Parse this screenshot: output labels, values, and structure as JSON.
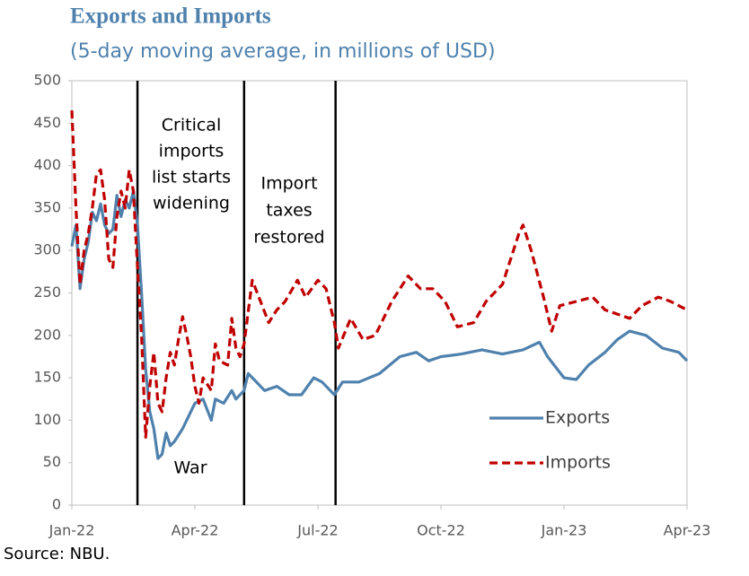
{
  "chart_data": {
    "type": "line",
    "title": "Exports and Imports",
    "subtitle": "(5-day moving average,  in millions of USD)",
    "source": "Source: NBU.",
    "xlim": [
      0,
      15
    ],
    "xticks": [
      {
        "value": 0,
        "label": "Jan-22"
      },
      {
        "value": 3,
        "label": "Apr-22"
      },
      {
        "value": 6,
        "label": "Jul-22"
      },
      {
        "value": 9,
        "label": "Oct-22"
      },
      {
        "value": 12,
        "label": "Jan-23"
      },
      {
        "value": 15,
        "label": "Apr-23"
      }
    ],
    "ylim": [
      0,
      500
    ],
    "yticks": [
      0,
      50,
      100,
      150,
      200,
      250,
      300,
      350,
      400,
      450,
      500
    ],
    "events": [
      1.6,
      4.2,
      6.43
    ],
    "annotations": [
      {
        "lines": [
          "Critical",
          "imports",
          "list starts",
          "widening"
        ]
      },
      {
        "lines": [
          "Import",
          "taxes",
          "restored"
        ]
      },
      {
        "lines": [
          "War"
        ]
      }
    ],
    "series": [
      {
        "name": "Exports",
        "color": "#4f81ad",
        "dash": false,
        "x": [
          0,
          0.1,
          0.2,
          0.3,
          0.4,
          0.5,
          0.6,
          0.7,
          0.8,
          0.9,
          1.0,
          1.1,
          1.2,
          1.3,
          1.4,
          1.5,
          1.6,
          1.7,
          1.8,
          1.9,
          2.0,
          2.1,
          2.2,
          2.3,
          2.4,
          2.5,
          2.7,
          2.9,
          3.0,
          3.2,
          3.4,
          3.5,
          3.7,
          3.9,
          4.0,
          4.2,
          4.3,
          4.5,
          4.7,
          5.0,
          5.3,
          5.6,
          5.9,
          6.1,
          6.4,
          6.6,
          7.0,
          7.5,
          8.0,
          8.4,
          8.7,
          9.0,
          9.5,
          10.0,
          10.5,
          11.0,
          11.4,
          11.6,
          12.0,
          12.3,
          12.6,
          13.0,
          13.3,
          13.6,
          14.0,
          14.4,
          14.8,
          15.0
        ],
        "values": [
          305,
          330,
          255,
          290,
          310,
          345,
          335,
          355,
          330,
          320,
          325,
          365,
          340,
          360,
          350,
          370,
          330,
          250,
          160,
          110,
          90,
          55,
          60,
          85,
          70,
          75,
          90,
          110,
          120,
          125,
          100,
          125,
          120,
          135,
          125,
          135,
          155,
          145,
          135,
          140,
          130,
          130,
          150,
          145,
          130,
          145,
          145,
          155,
          175,
          180,
          170,
          175,
          178,
          183,
          178,
          183,
          192,
          175,
          150,
          148,
          165,
          180,
          195,
          205,
          200,
          185,
          180,
          170
        ]
      },
      {
        "name": "Imports",
        "color": "#c00000",
        "dash": true,
        "x": [
          0,
          0.1,
          0.2,
          0.3,
          0.4,
          0.5,
          0.6,
          0.7,
          0.8,
          0.9,
          1.0,
          1.1,
          1.2,
          1.3,
          1.4,
          1.5,
          1.6,
          1.7,
          1.8,
          1.9,
          2.0,
          2.1,
          2.2,
          2.3,
          2.4,
          2.5,
          2.6,
          2.7,
          2.8,
          2.9,
          3.0,
          3.1,
          3.2,
          3.4,
          3.5,
          3.6,
          3.8,
          3.9,
          4.0,
          4.1,
          4.2,
          4.4,
          4.6,
          4.8,
          5.0,
          5.2,
          5.5,
          5.7,
          6.0,
          6.2,
          6.4,
          6.5,
          6.8,
          7.1,
          7.4,
          7.8,
          8.2,
          8.5,
          8.8,
          9.1,
          9.4,
          9.8,
          10.1,
          10.5,
          10.9,
          11.0,
          11.2,
          11.5,
          11.7,
          11.9,
          12.3,
          12.7,
          13.0,
          13.3,
          13.6,
          13.9,
          14.3,
          14.6,
          15.0
        ],
        "values": [
          465,
          350,
          260,
          300,
          320,
          350,
          390,
          395,
          360,
          290,
          280,
          340,
          370,
          350,
          395,
          370,
          280,
          200,
          80,
          140,
          180,
          120,
          110,
          150,
          180,
          165,
          195,
          222,
          200,
          175,
          140,
          120,
          150,
          135,
          190,
          170,
          165,
          220,
          185,
          175,
          190,
          265,
          240,
          215,
          230,
          240,
          265,
          245,
          265,
          255,
          215,
          185,
          220,
          195,
          200,
          240,
          270,
          255,
          255,
          240,
          210,
          215,
          240,
          260,
          320,
          330,
          300,
          245,
          205,
          235,
          240,
          245,
          230,
          225,
          220,
          235,
          245,
          240,
          230
        ]
      }
    ]
  }
}
